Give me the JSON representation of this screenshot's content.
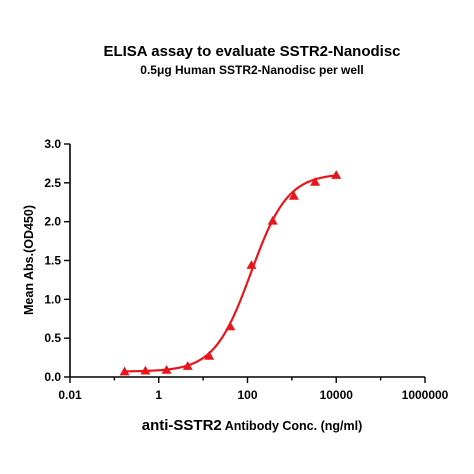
{
  "chart_data": {
    "type": "scatter",
    "title": "ELISA assay to evaluate SSTR2-Nanodisc",
    "subtitle": "0.5μg Human SSTR2-Nanodisc per well",
    "xlabel_bold": "anti-SSTR2",
    "xlabel_rest": " Antibody Conc. (ng/ml)",
    "ylabel": "Mean Abs.(OD450)",
    "xscale": "log",
    "xlim": [
      0.01,
      1000000
    ],
    "ylim": [
      0,
      3.0
    ],
    "xticks": [
      0.01,
      1,
      100,
      10000,
      1000000
    ],
    "xtick_labels": [
      "0.01",
      "1",
      "100",
      "10000",
      "1000000"
    ],
    "yticks": [
      0,
      0.5,
      1.0,
      1.5,
      2.0,
      2.5,
      3.0
    ],
    "ytick_labels": [
      "0.0",
      "0.5",
      "1.0",
      "1.5",
      "2.0",
      "2.5",
      "3.0"
    ],
    "grid": false,
    "legend": "none",
    "color": "#e8161b",
    "series": [
      {
        "x": [
          0.17,
          0.5,
          1.5,
          4.5,
          13.7,
          41,
          123,
          370,
          1111,
          3333,
          10000
        ],
        "y": [
          0.07,
          0.08,
          0.09,
          0.14,
          0.27,
          0.65,
          1.44,
          2.01,
          2.33,
          2.51,
          2.6
        ],
        "marker": "triangle",
        "fit": {
          "model": "4PL",
          "bottom": 0.07,
          "top": 2.62,
          "ec50": 120,
          "hill": 1.05,
          "x_range": [
            0.17,
            10000
          ]
        }
      }
    ]
  }
}
